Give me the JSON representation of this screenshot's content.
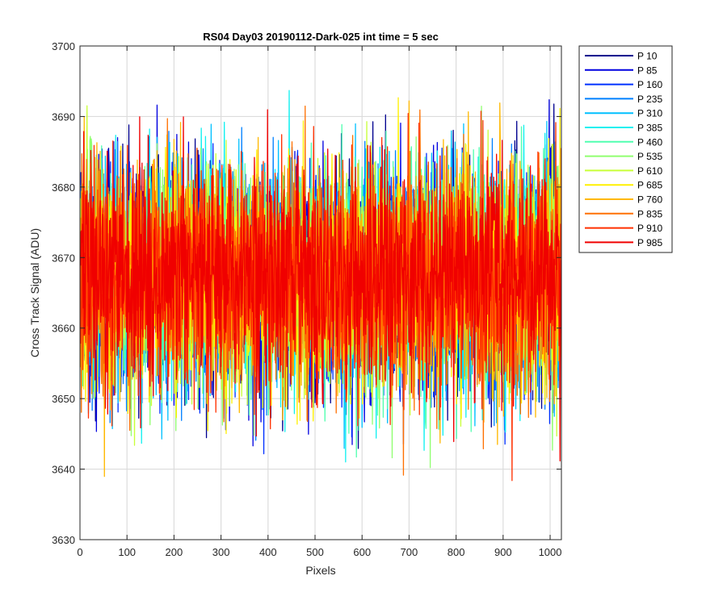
{
  "chart_data": {
    "type": "line",
    "title": "RS04 Day03 20190112-Dark-025 int time = 5 sec",
    "xlabel": "Pixels",
    "ylabel": "Cross Track Signal (ADU)",
    "xlim": [
      0,
      1024
    ],
    "ylim": [
      3630,
      3700
    ],
    "xticks": [
      0,
      100,
      200,
      300,
      400,
      500,
      600,
      700,
      800,
      900,
      1000
    ],
    "yticks": [
      3630,
      3640,
      3650,
      3660,
      3670,
      3680,
      3690,
      3700
    ],
    "grid": true,
    "legend_position": "outside-top-right",
    "n_points_per_series": 1024,
    "approx_mean": 3667,
    "approx_range": [
      3638,
      3694
    ],
    "series": [
      {
        "name": "P 10",
        "color": "#00008F",
        "seed": 11
      },
      {
        "name": "P 85",
        "color": "#0000E0",
        "seed": 23
      },
      {
        "name": "P 160",
        "color": "#0030FF",
        "seed": 37
      },
      {
        "name": "P 235",
        "color": "#0080FF",
        "seed": 41
      },
      {
        "name": "P 310",
        "color": "#00C0FF",
        "seed": 53
      },
      {
        "name": "P 385",
        "color": "#10F0F0",
        "seed": 67
      },
      {
        "name": "P 460",
        "color": "#50FFB0",
        "seed": 71
      },
      {
        "name": "P 535",
        "color": "#90FF70",
        "seed": 83
      },
      {
        "name": "P 610",
        "color": "#C8FF38",
        "seed": 97
      },
      {
        "name": "P 685",
        "color": "#FFF000",
        "seed": 101
      },
      {
        "name": "P 760",
        "color": "#FFB800",
        "seed": 113
      },
      {
        "name": "P 835",
        "color": "#FF7000",
        "seed": 127
      },
      {
        "name": "P 910",
        "color": "#FF3000",
        "seed": 131
      },
      {
        "name": "P 985",
        "color": "#F00000",
        "seed": 149
      }
    ]
  }
}
